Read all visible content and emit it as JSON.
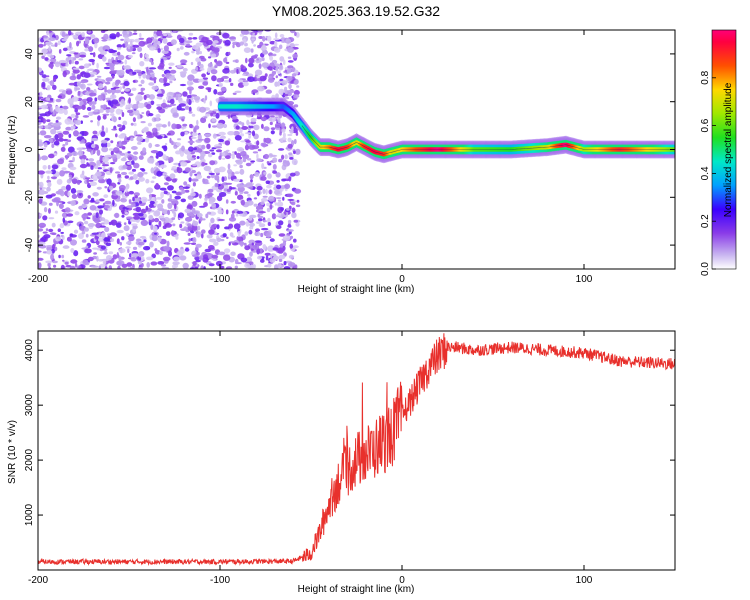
{
  "title": "YM08.2025.363.19.52.G32",
  "chart_data": [
    {
      "type": "heatmap",
      "xlabel": "Height of straight line (km)",
      "ylabel": "Frequency (Hz)",
      "xlim": [
        -200,
        150
      ],
      "ylim": [
        -50,
        50
      ],
      "xticks": [
        "-200",
        "-100",
        "0",
        "100"
      ],
      "yticks": [
        "-40",
        "-20",
        "0",
        "20",
        "40"
      ],
      "colorbar": {
        "label": "Normalized spectral amplitude",
        "range": [
          0,
          1
        ],
        "ticks": [
          "0.0",
          "0.2",
          "0.4",
          "0.6",
          "0.8"
        ]
      },
      "signal_track": {
        "description_units": "height km vs frequency Hz",
        "x": [
          -100,
          -90,
          -80,
          -70,
          -65,
          -60,
          -55,
          -50,
          -45,
          -40,
          -35,
          -30,
          -25,
          -20,
          -15,
          -10,
          -5,
          0,
          20,
          40,
          60,
          80,
          90,
          100,
          120,
          150
        ],
        "y": [
          18,
          18,
          18,
          18,
          18,
          15,
          10,
          5,
          1,
          1,
          0,
          1,
          3,
          1,
          -1,
          -2,
          -1,
          0,
          0,
          0,
          0,
          1,
          2,
          0,
          0,
          0
        ],
        "amplitude": [
          0.45,
          0.45,
          0.4,
          0.35,
          0.3,
          0.35,
          0.45,
          0.55,
          0.7,
          0.8,
          0.95,
          0.9,
          0.7,
          0.9,
          0.95,
          0.9,
          0.7,
          0.75,
          1.0,
          0.6,
          0.55,
          0.7,
          1.0,
          0.65,
          0.9,
          0.6
        ]
      },
      "noise_region_x": [
        -200,
        -57
      ]
    },
    {
      "type": "line",
      "xlabel": "Height of straight line (km)",
      "ylabel": "SNR (10 * v/v)",
      "xlim": [
        -200,
        150
      ],
      "ylim": [
        0,
        4350
      ],
      "xticks": [
        "-200",
        "-100",
        "0",
        "100"
      ],
      "yticks": [
        "1000",
        "2000",
        "3000",
        "4000"
      ],
      "series": [
        {
          "name": "SNR",
          "color": "#e8302c",
          "x": [
            -200,
            -150,
            -100,
            -60,
            -50,
            -45,
            -40,
            -35,
            -30,
            -25,
            -20,
            -15,
            -10,
            -5,
            0,
            5,
            10,
            15,
            20,
            25,
            30,
            40,
            60,
            80,
            100,
            120,
            150
          ],
          "y": [
            150,
            150,
            150,
            160,
            300,
            700,
            1200,
            1600,
            1800,
            2000,
            2100,
            2200,
            2350,
            2500,
            2800,
            3100,
            3400,
            3700,
            3900,
            4050,
            4050,
            4000,
            4050,
            4000,
            3950,
            3800,
            3750
          ]
        }
      ]
    }
  ]
}
